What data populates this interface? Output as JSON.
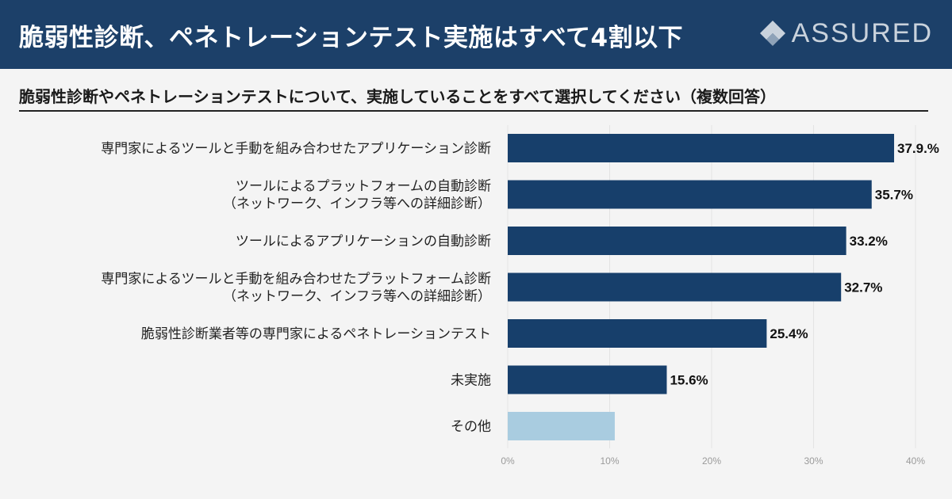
{
  "header": {
    "title": "脆弱性診断、ペネトレーションテスト実施はすべて4割以下",
    "logo_text": "ASSURED"
  },
  "colors": {
    "header_bg": "#1c4069",
    "bar_primary": "#173f6b",
    "bar_other": "#a9cce0"
  },
  "chart_data": {
    "type": "bar",
    "orientation": "horizontal",
    "title": "脆弱性診断やペネトレーションテストについて、実施していることをすべて選択してください（複数回答）",
    "categories": [
      [
        "専門家によるツールと手動を組み合わせたアプリケーション診断"
      ],
      [
        "ツールによるプラットフォームの自動診断",
        "（ネットワーク、インフラ等への詳細診断）"
      ],
      [
        "ツールによるアプリケーションの自動診断"
      ],
      [
        "専門家によるツールと手動を組み合わせたプラットフォーム診断",
        "（ネットワーク、インフラ等への詳細診断）"
      ],
      [
        "脆弱性診断業者等の専門家によるペネトレーションテスト"
      ],
      [
        "未実施"
      ],
      [
        "その他"
      ]
    ],
    "values": [
      37.9,
      35.7,
      33.2,
      32.7,
      25.4,
      15.6,
      10.5
    ],
    "value_labels": [
      "37.9.%",
      "35.7%",
      "33.2%",
      "32.7%",
      "25.4%",
      "15.6%",
      ""
    ],
    "bar_colors": [
      "#173f6b",
      "#173f6b",
      "#173f6b",
      "#173f6b",
      "#173f6b",
      "#173f6b",
      "#a9cce0"
    ],
    "xlim": [
      0,
      40
    ],
    "xticks": [
      "0%",
      "10%",
      "20%",
      "30%",
      "40%"
    ],
    "grid": true
  }
}
